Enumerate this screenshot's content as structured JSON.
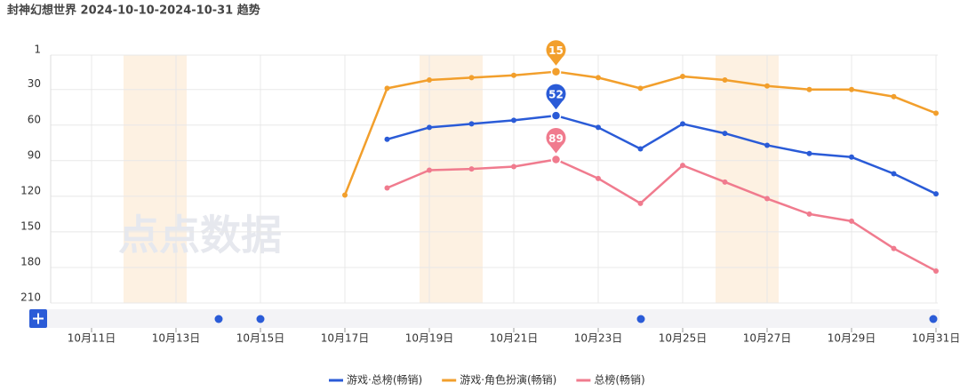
{
  "title": "封神幻想世界 2024-10-10-2024-10-31 趋势",
  "watermark": "点点数据",
  "chart_data": {
    "type": "line",
    "categories": [
      null,
      "10月11日",
      null,
      "10月13日",
      null,
      "10月15日",
      null,
      "10月17日",
      null,
      "10月19日",
      null,
      "10月21日",
      null,
      "10月23日",
      null,
      "10月25日",
      null,
      "10月27日",
      null,
      "10月29日",
      null,
      "10月31日"
    ],
    "series": [
      {
        "name": "游戏·总榜(畅销)",
        "color": "#2a5bd7",
        "values": [
          null,
          null,
          null,
          null,
          null,
          null,
          null,
          null,
          72,
          62,
          59,
          56,
          52,
          62,
          80,
          59,
          67,
          77,
          84,
          87,
          101,
          118
        ]
      },
      {
        "name": "游戏·角色扮演(畅销)",
        "color": "#f29f2c",
        "values": [
          null,
          null,
          null,
          null,
          null,
          null,
          null,
          119,
          29,
          22,
          20,
          18,
          15,
          20,
          29,
          19,
          22,
          27,
          30,
          30,
          36,
          50
        ]
      },
      {
        "name": "总榜(畅销)",
        "color": "#f07b8e",
        "values": [
          null,
          null,
          null,
          null,
          null,
          null,
          null,
          null,
          113,
          98,
          97,
          95,
          89,
          105,
          126,
          94,
          108,
          122,
          135,
          141,
          164,
          183
        ]
      }
    ],
    "ylim": [
      1,
      210
    ],
    "y_inverted": true,
    "yticks": [
      1,
      30,
      60,
      90,
      120,
      150,
      180,
      210
    ],
    "grid": true,
    "legend": "bottom"
  }
}
